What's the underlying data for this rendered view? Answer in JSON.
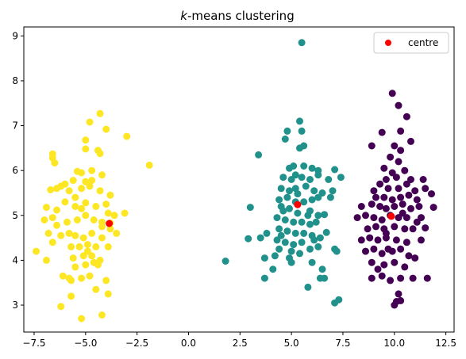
{
  "chart_data": {
    "type": "scatter",
    "title_italic": "k",
    "title_rest": "-means clustering",
    "xlim": [
      -8.0,
      12.9
    ],
    "ylim": [
      2.4,
      9.2
    ],
    "xticks": [
      -7.5,
      -5.0,
      -2.5,
      0.0,
      2.5,
      5.0,
      7.5,
      10.0,
      12.5
    ],
    "xtick_labels": [
      "−7.5",
      "−5.0",
      "−2.5",
      "0.0",
      "2.5",
      "5.0",
      "7.5",
      "10.0",
      "12.5"
    ],
    "yticks": [
      3,
      4,
      5,
      6,
      7,
      8,
      9
    ],
    "ytick_labels": [
      "3",
      "4",
      "5",
      "6",
      "7",
      "8",
      "9"
    ],
    "grid": false,
    "legend": {
      "position": "top-right",
      "entries": [
        "centre"
      ]
    },
    "colors": {
      "cluster_purple": "#440154",
      "cluster_teal": "#21918c",
      "cluster_yellow": "#fde725",
      "centre": "#ff0000"
    },
    "series": [
      {
        "color": "#fde725",
        "points": [
          [
            -3.0,
            6.76
          ],
          [
            -1.9,
            6.12
          ],
          [
            -4.3,
            7.27
          ],
          [
            -4.8,
            7.08
          ],
          [
            -4.0,
            6.92
          ],
          [
            -4.4,
            6.45
          ],
          [
            -4.3,
            6.38
          ],
          [
            -5.0,
            6.68
          ],
          [
            -5.0,
            6.48
          ],
          [
            -6.6,
            6.37
          ],
          [
            -6.6,
            6.28
          ],
          [
            -6.5,
            6.17
          ],
          [
            -5.4,
            5.98
          ],
          [
            -5.2,
            5.95
          ],
          [
            -4.7,
            6.0
          ],
          [
            -4.2,
            5.9
          ],
          [
            -5.6,
            5.78
          ],
          [
            -5.0,
            5.75
          ],
          [
            -4.7,
            5.78
          ],
          [
            -6.0,
            5.7
          ],
          [
            -6.7,
            5.57
          ],
          [
            -6.4,
            5.6
          ],
          [
            -6.2,
            5.65
          ],
          [
            -5.8,
            5.55
          ],
          [
            -5.5,
            5.4
          ],
          [
            -4.3,
            5.55
          ],
          [
            -5.2,
            5.6
          ],
          [
            -4.8,
            5.65
          ],
          [
            -6.9,
            5.18
          ],
          [
            -6.4,
            5.12
          ],
          [
            -6.0,
            5.3
          ],
          [
            -5.5,
            5.2
          ],
          [
            -5.0,
            5.28
          ],
          [
            -4.5,
            5.2
          ],
          [
            -4.0,
            5.25
          ],
          [
            -3.6,
            5.0
          ],
          [
            -3.1,
            5.05
          ],
          [
            -3.9,
            5.05
          ],
          [
            -7.0,
            4.9
          ],
          [
            -6.6,
            4.95
          ],
          [
            -6.4,
            4.78
          ],
          [
            -5.9,
            4.85
          ],
          [
            -5.4,
            4.9
          ],
          [
            -5.0,
            5.0
          ],
          [
            -4.6,
            4.9
          ],
          [
            -4.2,
            4.85
          ],
          [
            -3.8,
            4.7
          ],
          [
            -6.8,
            4.6
          ],
          [
            -6.2,
            4.55
          ],
          [
            -5.8,
            4.6
          ],
          [
            -5.5,
            4.55
          ],
          [
            -5.1,
            4.5
          ],
          [
            -4.7,
            4.6
          ],
          [
            -4.2,
            4.5
          ],
          [
            -6.6,
            4.4
          ],
          [
            -5.7,
            4.3
          ],
          [
            -5.3,
            4.3
          ],
          [
            -4.9,
            4.2
          ],
          [
            -4.5,
            4.3
          ],
          [
            -3.9,
            4.3
          ],
          [
            -5.6,
            4.05
          ],
          [
            -5.1,
            4.1
          ],
          [
            -4.7,
            4.1
          ],
          [
            -4.3,
            4.0
          ],
          [
            -6.9,
            4.0
          ],
          [
            -7.4,
            4.2
          ],
          [
            -5.5,
            3.85
          ],
          [
            -5.0,
            3.9
          ],
          [
            -4.6,
            3.95
          ],
          [
            -4.4,
            3.9
          ],
          [
            -5.2,
            3.6
          ],
          [
            -4.8,
            3.65
          ],
          [
            -5.8,
            3.6
          ],
          [
            -5.7,
            3.55
          ],
          [
            -4.0,
            3.55
          ],
          [
            -4.5,
            3.35
          ],
          [
            -3.9,
            3.25
          ],
          [
            -5.7,
            3.2
          ],
          [
            -6.2,
            2.97
          ],
          [
            -4.2,
            2.78
          ],
          [
            -5.2,
            2.7
          ],
          [
            -3.8,
            4.83
          ],
          [
            -4.2,
            4.75
          ],
          [
            -3.5,
            4.6
          ],
          [
            -3.8,
            5.45
          ],
          [
            -6.1,
            3.65
          ],
          [
            -4.9,
            4.35
          ],
          [
            -5.2,
            5.15
          ]
        ]
      },
      {
        "color": "#21918c",
        "points": [
          [
            5.5,
            8.85
          ],
          [
            5.4,
            7.1
          ],
          [
            4.8,
            6.88
          ],
          [
            5.5,
            6.88
          ],
          [
            4.7,
            6.7
          ],
          [
            3.4,
            6.35
          ],
          [
            5.4,
            6.5
          ],
          [
            5.6,
            6.55
          ],
          [
            4.9,
            6.05
          ],
          [
            5.1,
            6.1
          ],
          [
            5.6,
            6.1
          ],
          [
            6.0,
            6.05
          ],
          [
            6.3,
            6.0
          ],
          [
            7.1,
            6.02
          ],
          [
            4.6,
            5.85
          ],
          [
            5.0,
            5.8
          ],
          [
            5.5,
            5.85
          ],
          [
            5.9,
            5.8
          ],
          [
            6.3,
            5.9
          ],
          [
            6.8,
            5.8
          ],
          [
            7.4,
            5.85
          ],
          [
            4.5,
            5.6
          ],
          [
            4.9,
            5.55
          ],
          [
            5.2,
            5.6
          ],
          [
            5.7,
            5.65
          ],
          [
            6.1,
            5.55
          ],
          [
            6.5,
            5.5
          ],
          [
            7.0,
            5.55
          ],
          [
            4.4,
            5.35
          ],
          [
            4.8,
            5.4
          ],
          [
            5.2,
            5.3
          ],
          [
            5.6,
            5.3
          ],
          [
            6.0,
            5.35
          ],
          [
            6.3,
            5.4
          ],
          [
            6.9,
            5.4
          ],
          [
            3.0,
            5.18
          ],
          [
            4.5,
            5.2
          ],
          [
            4.9,
            5.15
          ],
          [
            5.3,
            5.05
          ],
          [
            5.9,
            5.1
          ],
          [
            6.3,
            5.0
          ],
          [
            6.6,
            5.02
          ],
          [
            4.3,
            4.95
          ],
          [
            4.7,
            4.9
          ],
          [
            5.1,
            4.85
          ],
          [
            5.5,
            4.85
          ],
          [
            5.9,
            4.8
          ],
          [
            6.2,
            4.85
          ],
          [
            4.4,
            4.7
          ],
          [
            4.8,
            4.65
          ],
          [
            5.2,
            4.6
          ],
          [
            5.6,
            4.6
          ],
          [
            6.0,
            4.55
          ],
          [
            3.8,
            4.6
          ],
          [
            4.3,
            4.45
          ],
          [
            4.7,
            4.4
          ],
          [
            5.1,
            4.35
          ],
          [
            5.5,
            4.4
          ],
          [
            6.1,
            4.45
          ],
          [
            6.4,
            4.5
          ],
          [
            2.9,
            4.48
          ],
          [
            3.5,
            4.5
          ],
          [
            4.4,
            4.25
          ],
          [
            5.0,
            4.2
          ],
          [
            5.4,
            4.15
          ],
          [
            5.9,
            4.25
          ],
          [
            6.3,
            4.3
          ],
          [
            7.1,
            4.25
          ],
          [
            7.2,
            4.2
          ],
          [
            3.7,
            4.05
          ],
          [
            4.9,
            4.05
          ],
          [
            5.0,
            3.95
          ],
          [
            6.0,
            3.95
          ],
          [
            6.5,
            3.8
          ],
          [
            4.1,
            3.8
          ],
          [
            1.8,
            3.98
          ],
          [
            3.7,
            3.6
          ],
          [
            6.4,
            3.6
          ],
          [
            6.6,
            3.6
          ],
          [
            5.8,
            3.4
          ],
          [
            7.3,
            3.12
          ],
          [
            7.1,
            3.05
          ],
          [
            4.5,
            4.55
          ],
          [
            5.2,
            5.9
          ],
          [
            6.7,
            4.62
          ],
          [
            4.2,
            4.1
          ],
          [
            5.8,
            5.0
          ],
          [
            4.6,
            5.1
          ],
          [
            5.3,
            5.48
          ]
        ]
      },
      {
        "color": "#440154",
        "points": [
          [
            9.9,
            7.72
          ],
          [
            10.2,
            7.45
          ],
          [
            10.6,
            7.2
          ],
          [
            9.4,
            6.85
          ],
          [
            10.3,
            6.88
          ],
          [
            8.9,
            6.55
          ],
          [
            10.0,
            6.55
          ],
          [
            10.3,
            6.45
          ],
          [
            10.8,
            6.65
          ],
          [
            10.2,
            6.2
          ],
          [
            9.8,
            6.3
          ],
          [
            9.5,
            6.05
          ],
          [
            9.9,
            5.95
          ],
          [
            10.5,
            6.0
          ],
          [
            9.6,
            5.8
          ],
          [
            10.1,
            5.85
          ],
          [
            10.8,
            5.8
          ],
          [
            11.4,
            5.8
          ],
          [
            9.0,
            5.55
          ],
          [
            9.3,
            5.7
          ],
          [
            9.7,
            5.6
          ],
          [
            10.2,
            5.6
          ],
          [
            10.6,
            5.7
          ],
          [
            11.0,
            5.55
          ],
          [
            11.5,
            5.6
          ],
          [
            9.1,
            5.4
          ],
          [
            9.5,
            5.4
          ],
          [
            9.9,
            5.35
          ],
          [
            10.3,
            5.4
          ],
          [
            10.7,
            5.45
          ],
          [
            11.1,
            5.35
          ],
          [
            11.8,
            5.48
          ],
          [
            8.4,
            5.2
          ],
          [
            8.9,
            5.25
          ],
          [
            9.3,
            5.2
          ],
          [
            9.6,
            5.15
          ],
          [
            10.0,
            5.2
          ],
          [
            10.4,
            5.25
          ],
          [
            10.8,
            5.15
          ],
          [
            11.2,
            5.2
          ],
          [
            11.9,
            5.18
          ],
          [
            8.2,
            4.95
          ],
          [
            8.6,
            5.0
          ],
          [
            9.0,
            4.95
          ],
          [
            9.4,
            4.9
          ],
          [
            9.8,
            5.0
          ],
          [
            10.2,
            4.95
          ],
          [
            10.6,
            4.95
          ],
          [
            11.3,
            4.95
          ],
          [
            8.7,
            4.7
          ],
          [
            9.1,
            4.75
          ],
          [
            9.5,
            4.7
          ],
          [
            10.0,
            4.75
          ],
          [
            10.5,
            4.7
          ],
          [
            10.9,
            4.7
          ],
          [
            11.5,
            4.72
          ],
          [
            8.4,
            4.45
          ],
          [
            8.8,
            4.5
          ],
          [
            9.2,
            4.45
          ],
          [
            9.6,
            4.5
          ],
          [
            10.1,
            4.45
          ],
          [
            10.6,
            4.4
          ],
          [
            11.3,
            4.45
          ],
          [
            8.6,
            4.2
          ],
          [
            9.0,
            4.25
          ],
          [
            9.4,
            4.15
          ],
          [
            9.9,
            4.2
          ],
          [
            10.3,
            4.25
          ],
          [
            10.7,
            4.1
          ],
          [
            11.0,
            4.05
          ],
          [
            8.9,
            3.95
          ],
          [
            9.5,
            3.9
          ],
          [
            10.0,
            3.95
          ],
          [
            10.5,
            3.85
          ],
          [
            9.2,
            3.8
          ],
          [
            8.9,
            3.6
          ],
          [
            9.4,
            3.65
          ],
          [
            9.8,
            3.55
          ],
          [
            10.3,
            3.6
          ],
          [
            10.9,
            3.6
          ],
          [
            11.6,
            3.6
          ],
          [
            10.2,
            3.25
          ],
          [
            10.1,
            3.08
          ],
          [
            10.3,
            3.1
          ],
          [
            10.0,
            3.0
          ],
          [
            9.6,
            4.6
          ],
          [
            10.4,
            5.05
          ],
          [
            9.7,
            4.25
          ],
          [
            11.1,
            4.85
          ]
        ]
      }
    ],
    "centres": [
      [
        -3.85,
        4.82
      ],
      [
        5.3,
        5.24
      ],
      [
        9.85,
        4.98
      ]
    ]
  }
}
